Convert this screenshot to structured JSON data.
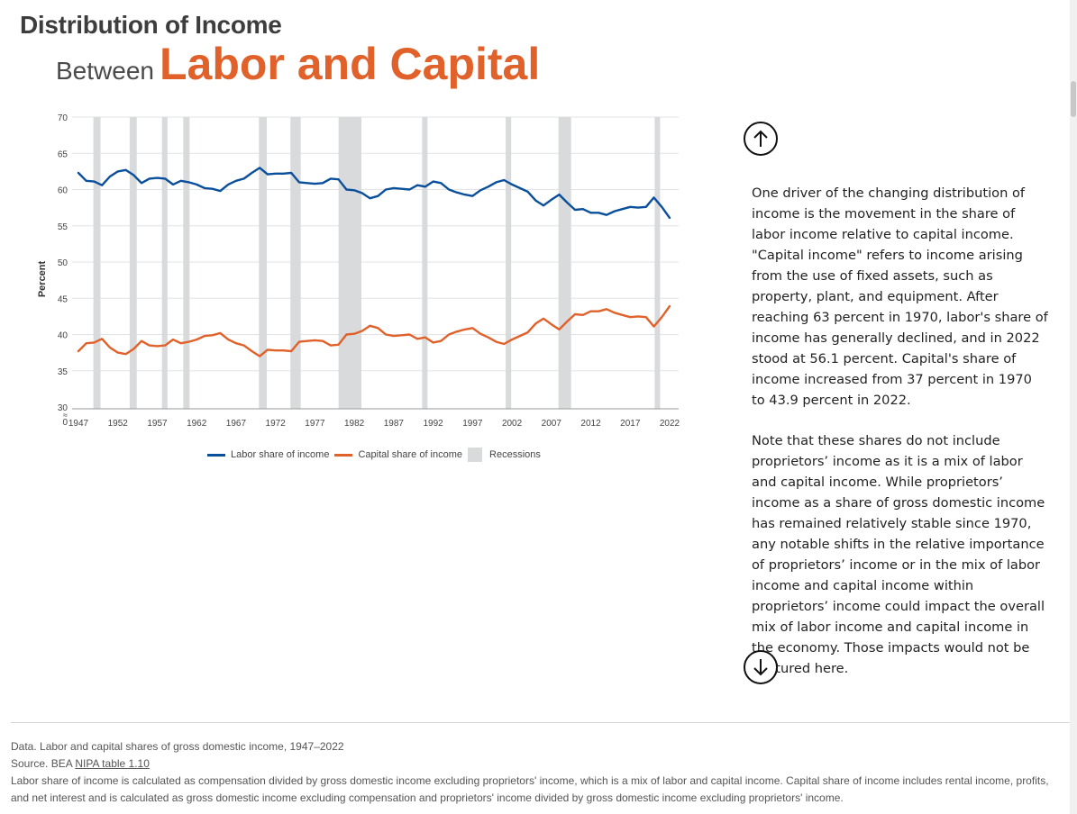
{
  "header": {
    "title": "Distribution of Income",
    "subtitle_prefix": "Between",
    "subtitle_emphasis": "Labor and Capital"
  },
  "chart_data": {
    "type": "line",
    "ylabel": "Percent",
    "ylim": [
      30,
      70
    ],
    "yticks": [
      30,
      35,
      40,
      45,
      50,
      55,
      60,
      65,
      70
    ],
    "xlim": [
      1947,
      2022
    ],
    "xticks": [
      "1947",
      "1952",
      "1957",
      "1962",
      "1967",
      "1972",
      "1977",
      "1982",
      "1987",
      "1992",
      "1997",
      "2002",
      "2007",
      "2012",
      "2017",
      "2022"
    ],
    "x": [
      1947,
      1948,
      1949,
      1950,
      1951,
      1952,
      1953,
      1954,
      1955,
      1956,
      1957,
      1958,
      1959,
      1960,
      1961,
      1962,
      1963,
      1964,
      1965,
      1966,
      1967,
      1968,
      1969,
      1970,
      1971,
      1972,
      1973,
      1974,
      1975,
      1976,
      1977,
      1978,
      1979,
      1980,
      1981,
      1982,
      1983,
      1984,
      1985,
      1986,
      1987,
      1988,
      1989,
      1990,
      1991,
      1992,
      1993,
      1994,
      1995,
      1996,
      1997,
      1998,
      1999,
      2000,
      2001,
      2002,
      2003,
      2004,
      2005,
      2006,
      2007,
      2008,
      2009,
      2010,
      2011,
      2012,
      2013,
      2014,
      2015,
      2016,
      2017,
      2018,
      2019,
      2020,
      2021,
      2022
    ],
    "series": [
      {
        "name": "Labor share of income",
        "color": "#0a4f9b",
        "values": [
          62.3,
          61.2,
          61.1,
          60.6,
          61.8,
          62.5,
          62.7,
          62.0,
          60.9,
          61.5,
          61.6,
          61.5,
          60.7,
          61.2,
          61.0,
          60.7,
          60.2,
          60.1,
          59.8,
          60.7,
          61.2,
          61.5,
          62.3,
          63.0,
          62.1,
          62.2,
          62.2,
          62.3,
          61.0,
          60.9,
          60.8,
          60.9,
          61.5,
          61.4,
          60.0,
          59.9,
          59.5,
          58.8,
          59.1,
          60.0,
          60.2,
          60.1,
          60.0,
          60.6,
          60.4,
          61.1,
          60.9,
          60.0,
          59.6,
          59.3,
          59.1,
          59.9,
          60.4,
          61.0,
          61.3,
          60.7,
          60.2,
          59.7,
          58.5,
          57.8,
          58.6,
          59.3,
          58.2,
          57.2,
          57.3,
          56.8,
          56.8,
          56.5,
          57.0,
          57.3,
          57.6,
          57.5,
          57.6,
          58.9,
          57.6,
          56.1
        ]
      },
      {
        "name": "Capital share of income",
        "color": "#e0612a",
        "values": [
          37.7,
          38.8,
          38.9,
          39.4,
          38.2,
          37.5,
          37.3,
          38.0,
          39.1,
          38.5,
          38.4,
          38.5,
          39.3,
          38.8,
          39.0,
          39.3,
          39.8,
          39.9,
          40.2,
          39.3,
          38.8,
          38.5,
          37.7,
          37.0,
          37.9,
          37.8,
          37.8,
          37.7,
          39.0,
          39.1,
          39.2,
          39.1,
          38.5,
          38.6,
          40.0,
          40.1,
          40.5,
          41.2,
          40.9,
          40.0,
          39.8,
          39.9,
          40.0,
          39.4,
          39.6,
          38.9,
          39.1,
          40.0,
          40.4,
          40.7,
          40.9,
          40.1,
          39.6,
          39.0,
          38.7,
          39.3,
          39.8,
          40.3,
          41.5,
          42.2,
          41.4,
          40.7,
          41.8,
          42.8,
          42.7,
          43.2,
          43.2,
          43.5,
          43.0,
          42.7,
          42.4,
          42.5,
          42.4,
          41.1,
          42.4,
          43.9
        ]
      }
    ],
    "recessions": [
      [
        1948.9,
        1949.8
      ],
      [
        1953.5,
        1954.4
      ],
      [
        1957.6,
        1958.3
      ],
      [
        1960.3,
        1961.1
      ],
      [
        1969.9,
        1970.9
      ],
      [
        1973.9,
        1975.2
      ],
      [
        1980.0,
        1982.9
      ],
      [
        1990.6,
        1991.2
      ],
      [
        2001.2,
        2001.9
      ],
      [
        2007.9,
        2009.5
      ],
      [
        2020.1,
        2020.3
      ]
    ],
    "legend": [
      {
        "label": "Labor share of income",
        "color": "#0a4f9b",
        "kind": "line"
      },
      {
        "label": "Capital share of income",
        "color": "#e0612a",
        "kind": "line"
      },
      {
        "label": "Recessions",
        "color": "#d9dadc",
        "kind": "box"
      }
    ],
    "axis_break_symbol": "≈",
    "zero_label": "0"
  },
  "narrative": {
    "paragraph_1": "One driver of the changing distribution of income is the movement in the share of labor income relative to capital income. \"Capital income\" refers to income arising from the use of fixed assets, such as property, plant, and equipment. After reaching 63 percent in 1970, labor's share of income has generally declined, and in 2022 stood at 56.1 percent. Capital's share of income increased from 37 percent in 1970 to 43.9 percent in 2022.",
    "paragraph_2": "Note that these shares do not include proprietors’ income as it is a mix of labor and capital income. While proprietors’ income as a share of gross domestic income has remained relatively stable since 1970, any notable shifts in the relative importance of proprietors’ income or in the mix of labor income and capital income within proprietors’ income could impact the overall mix of labor income and capital income in the economy. Those impacts would not be captured here."
  },
  "footer": {
    "data_line": "Data. Labor and capital shares of gross domestic income, 1947–2022",
    "source_prefix": "Source. BEA",
    "source_link": "NIPA table 1.10",
    "note": "Labor share of income is calculated as compensation divided by gross domestic income excluding proprietors' income, which is a mix of labor and capital income. Capital share of income includes rental income, profits, and net interest and is calculated as gross domestic income excluding compensation and proprietors' income divided by gross domestic income excluding proprietors' income."
  },
  "nav": {
    "up_icon": "arrow-up-icon",
    "down_icon": "arrow-down-icon"
  }
}
